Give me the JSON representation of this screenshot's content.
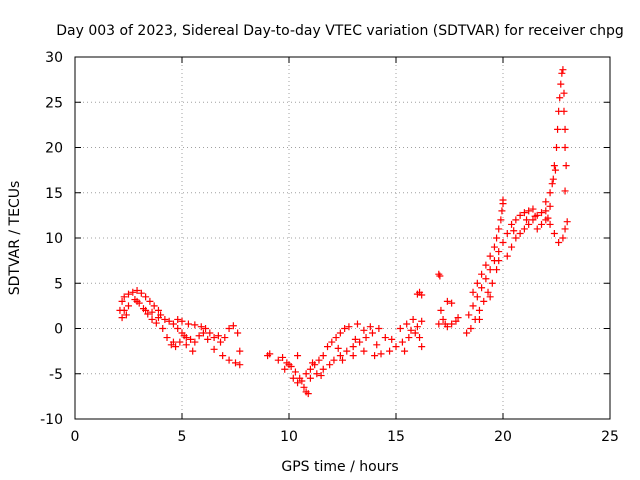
{
  "chart_data": {
    "type": "scatter",
    "title": "Day 003 of 2023, Sidereal Day-to-day VTEC variation (SDTVAR) for receiver chpg",
    "xlabel": "GPS time / hours",
    "ylabel": "SDTVAR / TECUs",
    "xlim": [
      0,
      25
    ],
    "ylim": [
      -10,
      30
    ],
    "xticks": [
      "0",
      "5",
      "10",
      "15",
      "20",
      "25"
    ],
    "yticks": [
      "-10",
      "-5",
      "0",
      "5",
      "10",
      "15",
      "20",
      "25",
      "30"
    ],
    "grid": true,
    "marker": "+",
    "color": "#ff0000",
    "series": [
      {
        "name": "SDTVAR",
        "points": [
          [
            2.1,
            2.0
          ],
          [
            2.2,
            3.0
          ],
          [
            2.3,
            3.5
          ],
          [
            2.5,
            3.8
          ],
          [
            2.7,
            4.0
          ],
          [
            2.9,
            4.2
          ],
          [
            3.1,
            3.9
          ],
          [
            3.3,
            3.5
          ],
          [
            3.5,
            3.0
          ],
          [
            3.7,
            2.5
          ],
          [
            3.9,
            2.0
          ],
          [
            4.0,
            1.5
          ],
          [
            4.2,
            1.0
          ],
          [
            4.4,
            0.8
          ],
          [
            4.6,
            0.5
          ],
          [
            4.8,
            0.0
          ],
          [
            5.0,
            -0.5
          ],
          [
            5.2,
            -1.0
          ],
          [
            5.4,
            -1.2
          ],
          [
            5.6,
            -1.5
          ],
          [
            2.3,
            2.0
          ],
          [
            2.5,
            2.5
          ],
          [
            2.8,
            3.2
          ],
          [
            3.0,
            2.8
          ],
          [
            3.2,
            2.2
          ],
          [
            3.4,
            1.6
          ],
          [
            3.6,
            1.0
          ],
          [
            3.8,
            0.6
          ],
          [
            4.1,
            0.0
          ],
          [
            4.3,
            -1.0
          ],
          [
            4.5,
            -1.8
          ],
          [
            4.7,
            -2.0
          ],
          [
            4.9,
            -1.5
          ],
          [
            5.1,
            -0.8
          ],
          [
            4.8,
            1.0
          ],
          [
            5.0,
            0.8
          ],
          [
            5.3,
            0.5
          ],
          [
            5.6,
            0.4
          ],
          [
            5.9,
            0.2
          ],
          [
            6.1,
            0.0
          ],
          [
            6.3,
            -0.5
          ],
          [
            6.5,
            -1.0
          ],
          [
            6.8,
            -1.5
          ],
          [
            7.0,
            -1.0
          ],
          [
            7.2,
            0.0
          ],
          [
            7.4,
            0.3
          ],
          [
            7.6,
            -0.5
          ],
          [
            7.7,
            -2.5
          ],
          [
            5.2,
            -1.8
          ],
          [
            5.5,
            -2.5
          ],
          [
            6.5,
            -2.3
          ],
          [
            6.9,
            -3.0
          ],
          [
            7.2,
            -3.5
          ],
          [
            7.5,
            -3.8
          ],
          [
            7.7,
            -4.0
          ],
          [
            2.2,
            1.2
          ],
          [
            2.4,
            1.5
          ],
          [
            3.3,
            2.0
          ],
          [
            3.6,
            1.8
          ],
          [
            5.8,
            -0.8
          ],
          [
            6.2,
            -1.2
          ],
          [
            9.0,
            -3.0
          ],
          [
            9.1,
            -2.8
          ],
          [
            9.5,
            -3.5
          ],
          [
            9.7,
            -3.2
          ],
          [
            9.9,
            -3.8
          ],
          [
            10.1,
            -4.2
          ],
          [
            10.3,
            -4.8
          ],
          [
            10.5,
            -5.5
          ],
          [
            10.7,
            -6.5
          ],
          [
            10.8,
            -7.0
          ],
          [
            10.9,
            -7.2
          ],
          [
            10.0,
            -4.0
          ],
          [
            10.2,
            -5.5
          ],
          [
            10.4,
            -6.0
          ],
          [
            10.6,
            -5.8
          ],
          [
            10.8,
            -5.0
          ],
          [
            11.0,
            -4.5
          ],
          [
            11.2,
            -4.0
          ],
          [
            11.4,
            -3.5
          ],
          [
            11.6,
            -3.0
          ],
          [
            11.8,
            -2.0
          ],
          [
            12.0,
            -1.5
          ],
          [
            12.2,
            -1.0
          ],
          [
            12.4,
            -0.5
          ],
          [
            12.6,
            0.0
          ],
          [
            12.8,
            0.2
          ],
          [
            11.0,
            -5.5
          ],
          [
            11.3,
            -5.0
          ],
          [
            11.6,
            -4.5
          ],
          [
            11.9,
            -4.0
          ],
          [
            12.1,
            -3.5
          ],
          [
            12.4,
            -3.0
          ],
          [
            12.7,
            -2.5
          ],
          [
            13.0,
            -2.0
          ],
          [
            13.3,
            -1.5
          ],
          [
            13.6,
            -1.0
          ],
          [
            13.9,
            -0.5
          ],
          [
            14.2,
            0.0
          ],
          [
            12.5,
            -3.5
          ],
          [
            13.0,
            -3.0
          ],
          [
            13.5,
            -2.5
          ],
          [
            14.0,
            -3.0
          ],
          [
            14.3,
            -2.8
          ],
          [
            14.7,
            -2.5
          ],
          [
            15.0,
            -2.0
          ],
          [
            15.3,
            -1.5
          ],
          [
            15.6,
            -1.0
          ],
          [
            15.9,
            -0.5
          ],
          [
            16.0,
            0.2
          ],
          [
            16.2,
            0.8
          ],
          [
            13.2,
            0.5
          ],
          [
            13.8,
            0.2
          ],
          [
            14.5,
            -1.0
          ],
          [
            15.2,
            0.0
          ],
          [
            15.5,
            0.5
          ],
          [
            15.8,
            1.0
          ],
          [
            16.1,
            -1.0
          ],
          [
            16.2,
            -2.0
          ],
          [
            16.0,
            3.8
          ],
          [
            16.1,
            4.0
          ],
          [
            16.2,
            3.7
          ],
          [
            17.0,
            6.0
          ],
          [
            17.05,
            5.8
          ],
          [
            17.1,
            2.0
          ],
          [
            17.2,
            1.0
          ],
          [
            17.3,
            0.5
          ],
          [
            17.4,
            0.2
          ],
          [
            17.6,
            0.5
          ],
          [
            17.8,
            0.8
          ],
          [
            17.9,
            1.2
          ],
          [
            17.4,
            3.0
          ],
          [
            17.6,
            2.8
          ],
          [
            17.0,
            0.5
          ],
          [
            18.3,
            -0.5
          ],
          [
            18.5,
            0.0
          ],
          [
            18.7,
            1.0
          ],
          [
            18.9,
            2.0
          ],
          [
            19.1,
            3.0
          ],
          [
            19.3,
            4.0
          ],
          [
            19.5,
            5.0
          ],
          [
            19.7,
            6.5
          ],
          [
            19.8,
            7.5
          ],
          [
            18.4,
            1.5
          ],
          [
            18.6,
            2.5
          ],
          [
            18.8,
            3.5
          ],
          [
            19.0,
            4.5
          ],
          [
            19.2,
            5.5
          ],
          [
            19.4,
            6.5
          ],
          [
            19.6,
            7.5
          ],
          [
            19.8,
            8.5
          ],
          [
            20.0,
            9.5
          ],
          [
            20.2,
            10.5
          ],
          [
            20.4,
            11.5
          ],
          [
            20.6,
            12.0
          ],
          [
            20.8,
            12.5
          ],
          [
            21.0,
            12.8
          ],
          [
            21.2,
            13.0
          ],
          [
            21.4,
            13.2
          ],
          [
            18.6,
            4.0
          ],
          [
            18.8,
            5.0
          ],
          [
            19.0,
            6.0
          ],
          [
            19.2,
            7.0
          ],
          [
            19.4,
            8.0
          ],
          [
            19.6,
            9.0
          ],
          [
            19.7,
            10.0
          ],
          [
            19.8,
            11.0
          ],
          [
            19.9,
            12.0
          ],
          [
            19.95,
            13.0
          ],
          [
            20.0,
            13.8
          ],
          [
            20.0,
            14.2
          ],
          [
            20.2,
            8.0
          ],
          [
            20.4,
            9.0
          ],
          [
            20.6,
            10.0
          ],
          [
            20.8,
            10.5
          ],
          [
            21.0,
            11.0
          ],
          [
            21.2,
            11.5
          ],
          [
            21.4,
            12.0
          ],
          [
            21.6,
            12.5
          ],
          [
            21.8,
            12.8
          ],
          [
            22.0,
            13.0
          ],
          [
            22.2,
            13.5
          ],
          [
            21.6,
            11.0
          ],
          [
            21.8,
            11.5
          ],
          [
            22.0,
            12.0
          ],
          [
            22.2,
            11.5
          ],
          [
            22.4,
            10.5
          ],
          [
            22.6,
            9.5
          ],
          [
            22.8,
            10.0
          ],
          [
            22.9,
            11.0
          ],
          [
            23.0,
            11.8
          ],
          [
            22.0,
            14.0
          ],
          [
            22.2,
            15.0
          ],
          [
            22.3,
            16.0
          ],
          [
            22.4,
            18.0
          ],
          [
            22.5,
            20.0
          ],
          [
            22.55,
            22.0
          ],
          [
            22.6,
            24.0
          ],
          [
            22.65,
            25.5
          ],
          [
            22.7,
            27.0
          ],
          [
            22.75,
            28.2
          ],
          [
            22.8,
            28.6
          ],
          [
            22.85,
            26.0
          ],
          [
            22.85,
            24.0
          ],
          [
            22.9,
            22.0
          ],
          [
            22.9,
            20.0
          ],
          [
            22.95,
            18.0
          ],
          [
            22.9,
            15.2
          ],
          [
            2.9,
            3.0
          ],
          [
            3.9,
            1.2
          ],
          [
            4.6,
            -1.5
          ],
          [
            6.0,
            -0.5
          ],
          [
            6.7,
            -0.8
          ],
          [
            9.8,
            -4.5
          ],
          [
            10.4,
            -3.0
          ],
          [
            11.1,
            -3.8
          ],
          [
            11.5,
            -5.2
          ],
          [
            12.3,
            -2.2
          ],
          [
            13.1,
            -1.2
          ],
          [
            13.5,
            -0.2
          ],
          [
            14.1,
            -1.8
          ],
          [
            14.8,
            -1.2
          ],
          [
            15.4,
            -2.5
          ],
          [
            15.7,
            -0.2
          ],
          [
            18.9,
            1.0
          ],
          [
            19.4,
            3.5
          ],
          [
            20.5,
            10.8
          ],
          [
            21.1,
            12.0
          ],
          [
            21.5,
            12.4
          ],
          [
            22.1,
            12.2
          ],
          [
            22.35,
            16.5
          ],
          [
            22.45,
            17.5
          ]
        ]
      }
    ]
  }
}
